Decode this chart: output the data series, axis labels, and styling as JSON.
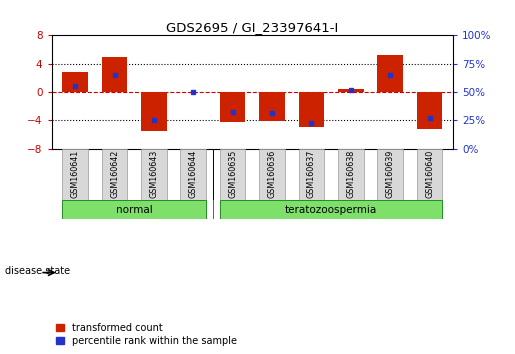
{
  "title": "GDS2695 / GI_23397641-I",
  "samples": [
    "GSM160641",
    "GSM160642",
    "GSM160643",
    "GSM160644",
    "GSM160635",
    "GSM160636",
    "GSM160637",
    "GSM160638",
    "GSM160639",
    "GSM160640"
  ],
  "transformed_counts": [
    2.8,
    5.0,
    -5.5,
    0.05,
    -4.2,
    -4.1,
    -5.0,
    0.4,
    5.2,
    -5.2
  ],
  "percentile_ranks": [
    55,
    65,
    25,
    50,
    32,
    31,
    23,
    52,
    65,
    27
  ],
  "groups": [
    {
      "label": "normal",
      "indices": [
        0,
        1,
        2,
        3
      ],
      "color": "#7EE06B"
    },
    {
      "label": "teratozoospermia",
      "indices": [
        4,
        5,
        6,
        7,
        8,
        9
      ],
      "color": "#7EE06B"
    }
  ],
  "group_divider": 3.5,
  "ylim": [
    -8,
    8
  ],
  "yticks_left": [
    -8,
    -4,
    0,
    4,
    8
  ],
  "yticks_right_vals": [
    0,
    25,
    50,
    75,
    100
  ],
  "yticks_right_pos": [
    -8,
    -4,
    0,
    4,
    8
  ],
  "bar_color": "#CC2200",
  "dot_color": "#2233CC",
  "hline_color": "#CC0000",
  "grid_color": "#000000",
  "bg_color": "#FFFFFF",
  "sample_box_color": "#D8D8D8",
  "sample_box_edge": "#999999",
  "disease_state_label": "disease state",
  "legend_items": [
    {
      "label": "transformed count",
      "color": "#CC2200"
    },
    {
      "label": "percentile rank within the sample",
      "color": "#2233CC"
    }
  ]
}
